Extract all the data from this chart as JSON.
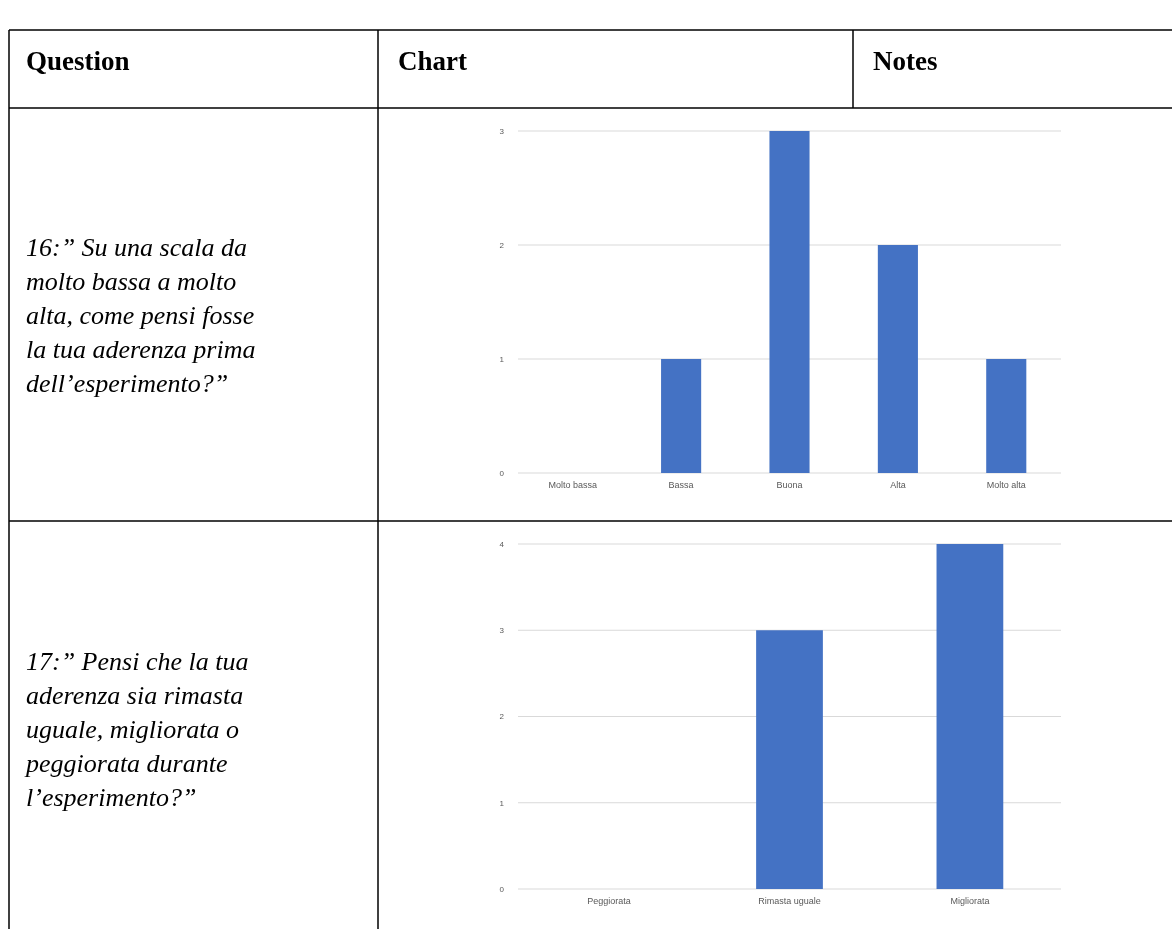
{
  "chart_data": [
    {
      "type": "other",
      "annotations": [
        "Question",
        "Chart",
        "Notes"
      ]
    },
    {
      "type": "other",
      "annotations": [
        "16:” Su una scala da molto bassa a molto alta, come pensi fosse la tua aderenza prima dell’esperimento?”"
      ]
    },
    {
      "type": "bar",
      "categories": [
        "Molto bassa",
        "Bassa",
        "Buona",
        "Alta",
        "Molto alta"
      ],
      "values": [
        0,
        1,
        3,
        2,
        1
      ],
      "color": "#4472c4",
      "ylim": [
        0,
        3
      ],
      "yticks": [
        0,
        1,
        2,
        3
      ],
      "grid": "y"
    },
    {
      "type": "other",
      "annotations": [
        "17:” Pensi che la tua aderenza sia rimasta uguale, migliorata o peggiorata durante l’esperimento?”"
      ]
    },
    {
      "type": "bar",
      "categories": [
        "Peggiorata",
        "Rimasta uguale",
        "Migliorata"
      ],
      "values": [
        0,
        3,
        4
      ],
      "color": "#4472c4",
      "ylim": [
        0,
        4
      ],
      "yticks": [
        0,
        1,
        2,
        3,
        4
      ],
      "grid": "y"
    }
  ]
}
